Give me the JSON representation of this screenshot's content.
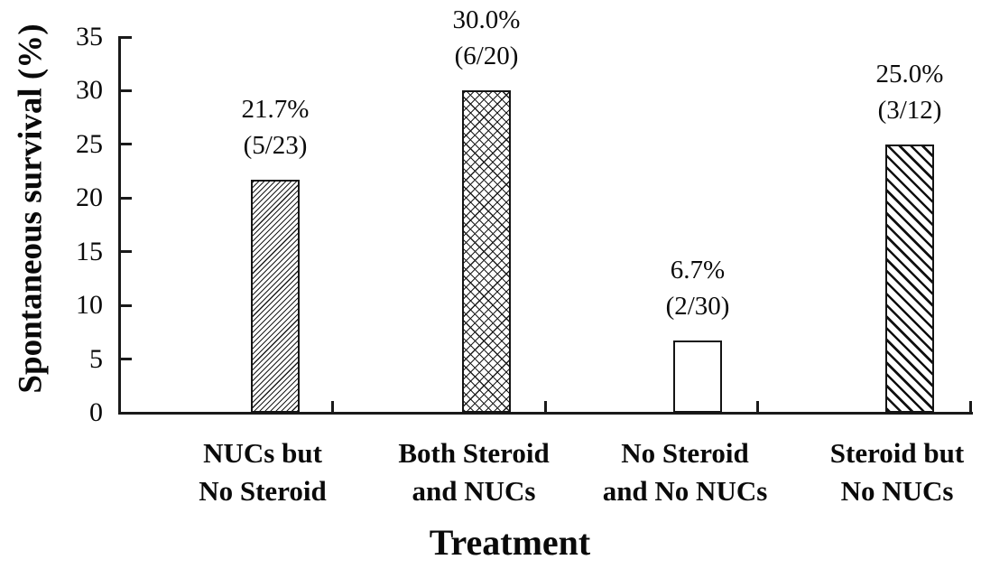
{
  "chart_data": {
    "type": "bar",
    "title": "",
    "xlabel": "Treatment",
    "ylabel": "Spontaneous survival (%)",
    "ylim": [
      0,
      35
    ],
    "yticks": [
      0,
      5,
      10,
      15,
      20,
      25,
      30,
      35
    ],
    "grid": false,
    "legend": "none",
    "categories": [
      "NUCs but No Steroid",
      "Both Steroid and NUCs",
      "No Steroid and No NUCs",
      "Steroid but No NUCs"
    ],
    "category_lines": [
      [
        "NUCs but",
        "No Steroid"
      ],
      [
        "Both Steroid",
        "and NUCs"
      ],
      [
        "No Steroid",
        "and No NUCs"
      ],
      [
        "Steroid but",
        "No NUCs"
      ]
    ],
    "values": [
      21.7,
      30.0,
      6.7,
      25.0
    ],
    "fractions": [
      "5/23",
      "6/20",
      "2/30",
      "3/12"
    ],
    "bar_labels": [
      [
        "21.7%",
        "(5/23)"
      ],
      [
        "30.0%",
        "(6/20)"
      ],
      [
        "6.7%",
        "(2/30)"
      ],
      [
        "25.0%",
        "(3/12)"
      ]
    ],
    "bar_patterns": [
      "diagonal-forward-hatch",
      "diagonal-crosshatch",
      "plain-white",
      "diagonal-back-hatch"
    ],
    "colors": {
      "foreground": "#000000",
      "background": "#ffffff"
    }
  }
}
